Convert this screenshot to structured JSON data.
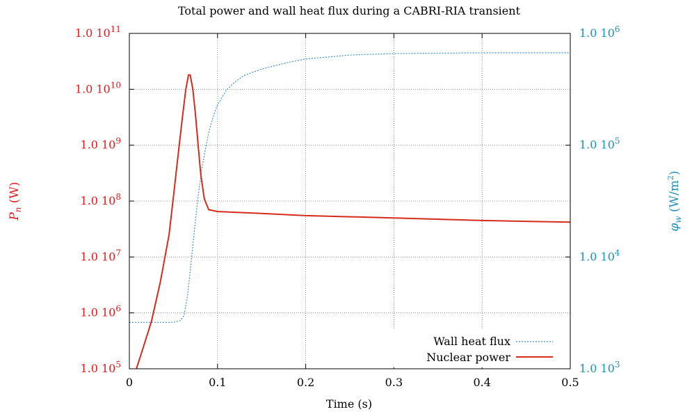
{
  "colors": {
    "left_axis": "#e41a1c",
    "right_axis": "#1f8fbf",
    "nuclear_power": "#d62a1b",
    "wall_heat_flux": "#3a8fd0",
    "grid": "#6e6e6e",
    "text": "#000000"
  },
  "chart_data": {
    "type": "line",
    "title": "Total power and wall heat flux during a CABRI-RIA transient",
    "xlabel": "Time (s)",
    "ylabel_left": {
      "symbol": "P",
      "sub": "n",
      "unit": " (W)"
    },
    "ylabel_right": {
      "symbol": "φ",
      "sub": "w",
      "unit_pre": " (W/m",
      "unit_sup": "2",
      "unit_post": ")"
    },
    "xlim": [
      0,
      0.5
    ],
    "ylim_left": [
      100000,
      100000000000
    ],
    "ylim_right": [
      1000,
      1000000
    ],
    "scale_left": "log",
    "scale_right": "log",
    "grid": true,
    "legend_position": "bottom-right",
    "x_ticks": [
      {
        "value": 0,
        "label": "0"
      },
      {
        "value": 0.1,
        "label": "0.1"
      },
      {
        "value": 0.2,
        "label": "0.2"
      },
      {
        "value": 0.3,
        "label": "0.3"
      },
      {
        "value": 0.4,
        "label": "0.4"
      },
      {
        "value": 0.5,
        "label": "0.5"
      }
    ],
    "y_left_ticks": [
      {
        "value": 100000,
        "base": "1.0 10",
        "exp": "5"
      },
      {
        "value": 1000000,
        "base": "1.0 10",
        "exp": "6"
      },
      {
        "value": 10000000,
        "base": "1.0 10",
        "exp": "7"
      },
      {
        "value": 100000000,
        "base": "1.0 10",
        "exp": "8"
      },
      {
        "value": 1000000000,
        "base": "1.0 10",
        "exp": "9"
      },
      {
        "value": 10000000000,
        "base": "1.0 10",
        "exp": "10"
      },
      {
        "value": 100000000000,
        "base": "1.0 10",
        "exp": "11"
      }
    ],
    "y_right_ticks": [
      {
        "value": 1000,
        "base": "1.0 10",
        "exp": "3"
      },
      {
        "value": 10000,
        "base": "1.0 10",
        "exp": "4"
      },
      {
        "value": 100000,
        "base": "1.0 10",
        "exp": "5"
      },
      {
        "value": 1000000,
        "base": "1.0 10",
        "exp": "6"
      }
    ],
    "series": [
      {
        "name": "Wall heat flux",
        "axis": "right",
        "style": "dotted",
        "x": [
          0,
          0.05,
          0.058,
          0.062,
          0.066,
          0.07,
          0.074,
          0.078,
          0.082,
          0.086,
          0.09,
          0.095,
          0.1,
          0.11,
          0.12,
          0.13,
          0.15,
          0.18,
          0.2,
          0.25,
          0.3,
          0.4,
          0.5
        ],
        "y": [
          2600,
          2600,
          2700,
          3000,
          4500,
          9000,
          18000,
          35000,
          60000,
          90000,
          130000,
          180000,
          230000,
          310000,
          370000,
          420000,
          480000,
          550000,
          590000,
          640000,
          660000,
          670000,
          670000
        ]
      },
      {
        "name": "Nuclear power",
        "axis": "left",
        "style": "solid",
        "x": [
          0.008,
          0.015,
          0.025,
          0.035,
          0.045,
          0.05,
          0.055,
          0.06,
          0.064,
          0.067,
          0.069,
          0.072,
          0.075,
          0.078,
          0.081,
          0.085,
          0.09,
          0.1,
          0.12,
          0.15,
          0.2,
          0.3,
          0.4,
          0.5
        ],
        "y": [
          100000,
          220000,
          700000,
          3500000,
          25000000,
          120000000,
          600000000,
          3000000000,
          10000000000,
          18000000000,
          18000000000,
          10000000000,
          3500000000,
          1000000000,
          300000000,
          110000000,
          70000000,
          65000000,
          63000000,
          60000000,
          55000000,
          50000000,
          45000000,
          42000000
        ]
      }
    ]
  }
}
